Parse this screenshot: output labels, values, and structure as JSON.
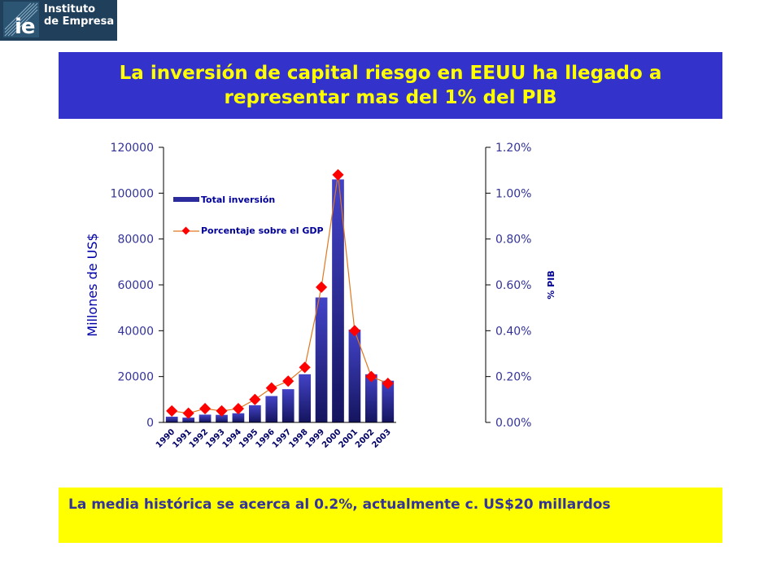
{
  "logo": {
    "mark": "ie",
    "line1": "Instituto",
    "line2": "de Empresa"
  },
  "title": "La inversión de capital riesgo en EEUU ha llegado a representar mas del 1% del PIB",
  "note": "La media histórica se acerca al 0.2%, actualmente c. US$20 millardos",
  "colors": {
    "title_bg": "#3333cc",
    "title_text": "#ffff00",
    "note_bg": "#ffff00",
    "note_text": "#333399",
    "bar": "#2b2b9e",
    "line": "#e07820",
    "marker": "#ff0000"
  },
  "chart_data": {
    "type": "bar",
    "categories": [
      "1990",
      "1991",
      "1992",
      "1993",
      "1994",
      "1995",
      "1996",
      "1997",
      "1998",
      "1999",
      "2000",
      "2001",
      "2002",
      "2003"
    ],
    "series": [
      {
        "name": "Total inversión",
        "type": "bar",
        "axis": "left",
        "values": [
          2500,
          2100,
          3400,
          3300,
          4000,
          7500,
          11500,
          14500,
          21000,
          54500,
          106000,
          40500,
          21000,
          18200
        ]
      },
      {
        "name": "Porcentaje sobre el GDP",
        "type": "line",
        "axis": "right",
        "values": [
          0.0005,
          0.0004,
          0.0006,
          0.0005,
          0.0006,
          0.001,
          0.0015,
          0.0018,
          0.0024,
          0.0059,
          0.0108,
          0.004,
          0.002,
          0.0017
        ]
      }
    ],
    "ylabel": "Millones de US$",
    "y2label": "% PIB",
    "ylim": [
      0,
      120000
    ],
    "y2lim": [
      0,
      0.012
    ],
    "yticks": [
      "0",
      "20000",
      "40000",
      "60000",
      "80000",
      "100000",
      "120000"
    ],
    "y2ticks": [
      "0.00%",
      "0.20%",
      "0.40%",
      "0.60%",
      "0.80%",
      "1.00%",
      "1.20%"
    ],
    "legend_position": "top-left"
  }
}
